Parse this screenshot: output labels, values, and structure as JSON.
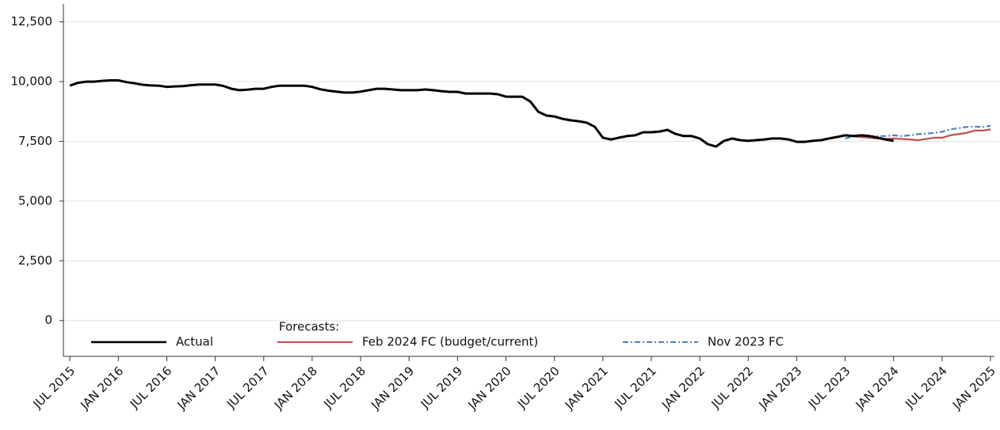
{
  "chart_data": {
    "type": "line",
    "xlim": [
      "2015-06",
      "2025-01"
    ],
    "xticks": [
      {
        "value": "2015-07",
        "label": "JUL 2015"
      },
      {
        "value": "2016-01",
        "label": "JAN 2016"
      },
      {
        "value": "2016-07",
        "label": "JUL 2016"
      },
      {
        "value": "2017-01",
        "label": "JAN 2017"
      },
      {
        "value": "2017-07",
        "label": "JUL 2017"
      },
      {
        "value": "2018-01",
        "label": "JAN 2018"
      },
      {
        "value": "2018-07",
        "label": "JUL 2018"
      },
      {
        "value": "2019-01",
        "label": "JAN 2019"
      },
      {
        "value": "2019-07",
        "label": "JUL 2019"
      },
      {
        "value": "2020-01",
        "label": "JAN 2020"
      },
      {
        "value": "2020-07",
        "label": "JUL 2020"
      },
      {
        "value": "2021-01",
        "label": "JAN 2021"
      },
      {
        "value": "2021-07",
        "label": "JUL 2021"
      },
      {
        "value": "2022-01",
        "label": "JAN 2022"
      },
      {
        "value": "2022-07",
        "label": "JUL 2022"
      },
      {
        "value": "2023-01",
        "label": "JAN 2023"
      },
      {
        "value": "2023-07",
        "label": "JUL 2023"
      },
      {
        "value": "2024-01",
        "label": "JAN 2024"
      },
      {
        "value": "2024-07",
        "label": "JUL 2024"
      },
      {
        "value": "2025-01",
        "label": "JAN 2025"
      }
    ],
    "ylim": [
      -1500,
      13250
    ],
    "yticks": [
      {
        "value": 0,
        "label": "0"
      },
      {
        "value": 2500,
        "label": "2,500"
      },
      {
        "value": 5000,
        "label": "5,000"
      },
      {
        "value": 7500,
        "label": "7,500"
      },
      {
        "value": 10000,
        "label": "10,000"
      },
      {
        "value": 12500,
        "label": "12,500"
      }
    ],
    "grid": true,
    "legend_title": "Forecasts:",
    "series": [
      {
        "name": "Actual",
        "color": "#000000",
        "dash": "solid",
        "x": [
          "2015-07",
          "2015-08",
          "2015-09",
          "2015-10",
          "2015-11",
          "2015-12",
          "2016-01",
          "2016-02",
          "2016-03",
          "2016-04",
          "2016-05",
          "2016-06",
          "2016-07",
          "2016-08",
          "2016-09",
          "2016-10",
          "2016-11",
          "2016-12",
          "2017-01",
          "2017-02",
          "2017-03",
          "2017-04",
          "2017-05",
          "2017-06",
          "2017-07",
          "2017-08",
          "2017-09",
          "2017-10",
          "2017-11",
          "2017-12",
          "2018-01",
          "2018-02",
          "2018-03",
          "2018-04",
          "2018-05",
          "2018-06",
          "2018-07",
          "2018-08",
          "2018-09",
          "2018-10",
          "2018-11",
          "2018-12",
          "2019-01",
          "2019-02",
          "2019-03",
          "2019-04",
          "2019-05",
          "2019-06",
          "2019-07",
          "2019-08",
          "2019-09",
          "2019-10",
          "2019-11",
          "2019-12",
          "2020-01",
          "2020-02",
          "2020-03",
          "2020-04",
          "2020-05",
          "2020-06",
          "2020-07",
          "2020-08",
          "2020-09",
          "2020-10",
          "2020-11",
          "2020-12",
          "2021-01",
          "2021-02",
          "2021-03",
          "2021-04",
          "2021-05",
          "2021-06",
          "2021-07",
          "2021-08",
          "2021-09",
          "2021-10",
          "2021-11",
          "2021-12",
          "2022-01",
          "2022-02",
          "2022-03",
          "2022-04",
          "2022-05",
          "2022-06",
          "2022-07",
          "2022-08",
          "2022-09",
          "2022-10",
          "2022-11",
          "2022-12",
          "2023-01",
          "2023-02",
          "2023-03",
          "2023-04",
          "2023-05",
          "2023-06",
          "2023-07",
          "2023-08",
          "2023-09",
          "2023-10",
          "2023-11",
          "2023-12",
          "2024-01"
        ],
        "values": [
          9830,
          9950,
          10000,
          10000,
          10030,
          10050,
          10050,
          9980,
          9930,
          9870,
          9840,
          9830,
          9780,
          9800,
          9810,
          9850,
          9880,
          9880,
          9880,
          9820,
          9700,
          9640,
          9660,
          9700,
          9700,
          9780,
          9830,
          9830,
          9830,
          9830,
          9780,
          9680,
          9620,
          9580,
          9540,
          9540,
          9580,
          9640,
          9700,
          9700,
          9670,
          9640,
          9640,
          9640,
          9670,
          9640,
          9600,
          9570,
          9570,
          9500,
          9500,
          9500,
          9500,
          9470,
          9370,
          9370,
          9370,
          9170,
          8740,
          8580,
          8540,
          8440,
          8380,
          8340,
          8280,
          8110,
          7650,
          7580,
          7650,
          7720,
          7750,
          7880,
          7880,
          7910,
          7980,
          7810,
          7720,
          7720,
          7620,
          7380,
          7280,
          7520,
          7620,
          7550,
          7520,
          7550,
          7580,
          7620,
          7620,
          7580,
          7480,
          7480,
          7520,
          7550,
          7620,
          7680,
          7750,
          7720,
          7750,
          7720,
          7650,
          7580,
          7520
        ]
      },
      {
        "name": "Feb 2024 FC (budget/current)",
        "color": "#c0504d",
        "dash": "solid",
        "x": [
          "2023-08",
          "2023-09",
          "2023-10",
          "2023-11",
          "2023-12",
          "2024-01",
          "2024-02",
          "2024-03",
          "2024-04",
          "2024-05",
          "2024-06",
          "2024-07",
          "2024-08",
          "2024-09",
          "2024-10",
          "2024-11",
          "2024-12",
          "2025-01"
        ],
        "values": [
          7700,
          7680,
          7650,
          7620,
          7600,
          7620,
          7600,
          7580,
          7550,
          7600,
          7650,
          7650,
          7750,
          7800,
          7850,
          7950,
          7950,
          8000
        ]
      },
      {
        "name": "Nov 2023 FC",
        "color": "#4f81bd",
        "dash": "dashdot",
        "x": [
          "2023-07",
          "2023-08",
          "2023-09",
          "2023-10",
          "2023-11",
          "2023-12",
          "2024-01",
          "2024-02",
          "2024-03",
          "2024-04",
          "2024-05",
          "2024-06",
          "2024-07",
          "2024-08",
          "2024-09",
          "2024-10",
          "2024-11",
          "2024-12",
          "2025-01"
        ],
        "values": [
          7620,
          7700,
          7720,
          7720,
          7720,
          7720,
          7750,
          7720,
          7750,
          7800,
          7820,
          7850,
          7900,
          8000,
          8050,
          8100,
          8120,
          8100,
          8150
        ]
      }
    ]
  }
}
